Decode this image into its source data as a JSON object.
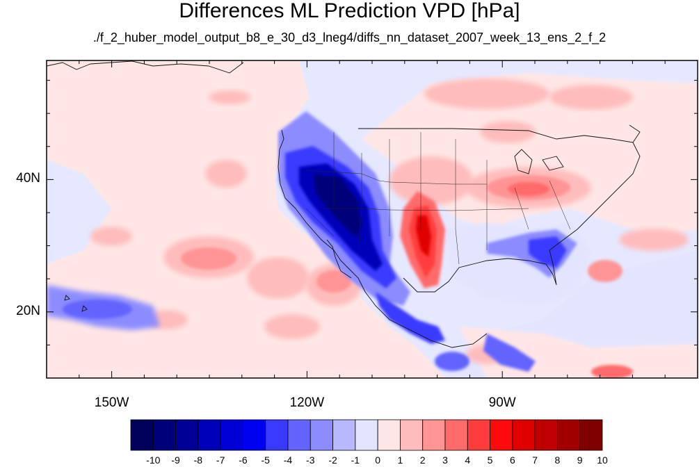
{
  "title": "Differences ML Prediction VPD [hPa]",
  "subtitle": "./f_2_huber_model_output_b8_e_30_d3_lneg4/diffs_nn_dataset_2007_week_13_ens_2_f_2",
  "map": {
    "lon_range": [
      -160,
      -60
    ],
    "lat_range": [
      10,
      58
    ],
    "lon_labels": [
      {
        "lon": -150,
        "text": "150W"
      },
      {
        "lon": -120,
        "text": "120W"
      },
      {
        "lon": -90,
        "text": "90W"
      }
    ],
    "lat_labels": [
      {
        "lat": 40,
        "text": "40N"
      },
      {
        "lat": 20,
        "text": "20N"
      }
    ]
  },
  "colorbar": {
    "ticks": [
      "-10",
      "-9",
      "-8",
      "-7",
      "-6",
      "-5",
      "-4",
      "-3",
      "-2",
      "-1",
      "0",
      "1",
      "2",
      "3",
      "4",
      "5",
      "6",
      "7",
      "8",
      "9",
      "10"
    ],
    "colors": [
      "#00005a",
      "#00007a",
      "#000098",
      "#0000b8",
      "#0000d6",
      "#0000f2",
      "#3a3aff",
      "#6363ff",
      "#8c8cff",
      "#b8b8ff",
      "#e3e5ff",
      "#ffe6e6",
      "#ffbcbc",
      "#ff9494",
      "#ff6b6b",
      "#ff3c3c",
      "#ff0a0a",
      "#e00000",
      "#c00000",
      "#a00000",
      "#800000"
    ]
  }
}
